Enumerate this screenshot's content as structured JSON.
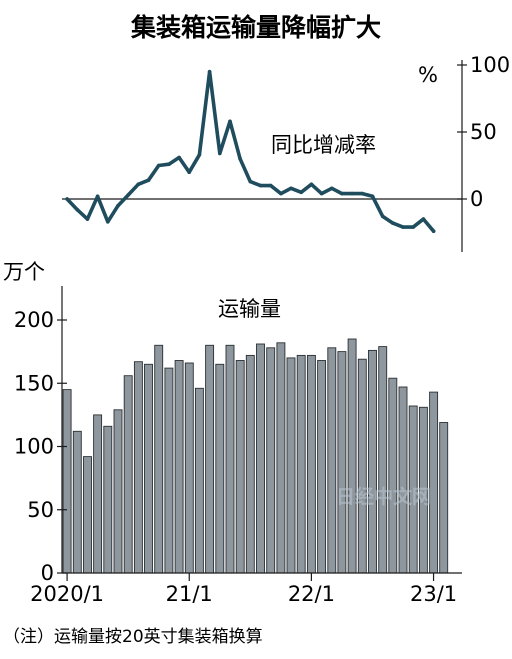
{
  "chart_data": [
    {
      "type": "line",
      "title": "集装箱运输量降幅扩大",
      "annotation": "同比增减率",
      "y_unit": "%",
      "yticks": [
        100,
        50,
        0
      ],
      "ylim": [
        -30,
        100
      ],
      "y_axis_side": "right",
      "grid": false,
      "color": "#1f4d5e",
      "months": [
        "2020/1",
        "2020/2",
        "2020/3",
        "2020/4",
        "2020/5",
        "2020/6",
        "2020/7",
        "2020/8",
        "2020/9",
        "2020/10",
        "2020/11",
        "2020/12",
        "2021/1",
        "2021/2",
        "2021/3",
        "2021/4",
        "2021/5",
        "2021/6",
        "2021/7",
        "2021/8",
        "2021/9",
        "2021/10",
        "2021/11",
        "2021/12",
        "2022/1",
        "2022/2",
        "2022/3",
        "2022/4",
        "2022/5",
        "2022/6",
        "2022/7",
        "2022/8",
        "2022/9",
        "2022/10",
        "2022/11",
        "2022/12",
        "2023/1",
        "2023/2",
        "2023/3"
      ],
      "values": [
        0,
        -8,
        -15,
        2,
        -17,
        -5,
        3,
        11,
        14,
        25,
        26,
        31,
        20,
        33,
        95,
        34,
        58,
        30,
        13,
        10,
        10,
        4,
        8,
        5,
        11,
        4,
        8,
        4,
        4,
        4,
        2,
        -13,
        -18,
        -21,
        -21,
        -15,
        -24,
        null,
        null
      ]
    },
    {
      "type": "bar",
      "annotation": "运输量",
      "y_unit": "万个",
      "yticks": [
        0,
        50,
        100,
        150,
        200
      ],
      "ylim": [
        0,
        220
      ],
      "y_axis_side": "left",
      "grid": false,
      "color": "#8e979d",
      "xtick_labels": [
        "2020/1",
        "21/1",
        "22/1",
        "23/1"
      ],
      "months": [
        "2020/1",
        "2020/2",
        "2020/3",
        "2020/4",
        "2020/5",
        "2020/6",
        "2020/7",
        "2020/8",
        "2020/9",
        "2020/10",
        "2020/11",
        "2020/12",
        "2021/1",
        "2021/2",
        "2021/3",
        "2021/4",
        "2021/5",
        "2021/6",
        "2021/7",
        "2021/8",
        "2021/9",
        "2021/10",
        "2021/11",
        "2021/12",
        "2022/1",
        "2022/2",
        "2022/3",
        "2022/4",
        "2022/5",
        "2022/6",
        "2022/7",
        "2022/8",
        "2022/9",
        "2022/10",
        "2022/11",
        "2022/12",
        "2023/1",
        "2023/2",
        "2023/3"
      ],
      "values": [
        145,
        112,
        92,
        125,
        116,
        129,
        156,
        167,
        165,
        180,
        162,
        168,
        166,
        146,
        180,
        165,
        180,
        168,
        172,
        181,
        178,
        182,
        170,
        172,
        172,
        168,
        178,
        175,
        185,
        169,
        176,
        179,
        154,
        147,
        132,
        131,
        143,
        119,
        null
      ]
    }
  ],
  "note": "（注）运输量按20英寸集装箱换算",
  "watermark": "日经中文网"
}
